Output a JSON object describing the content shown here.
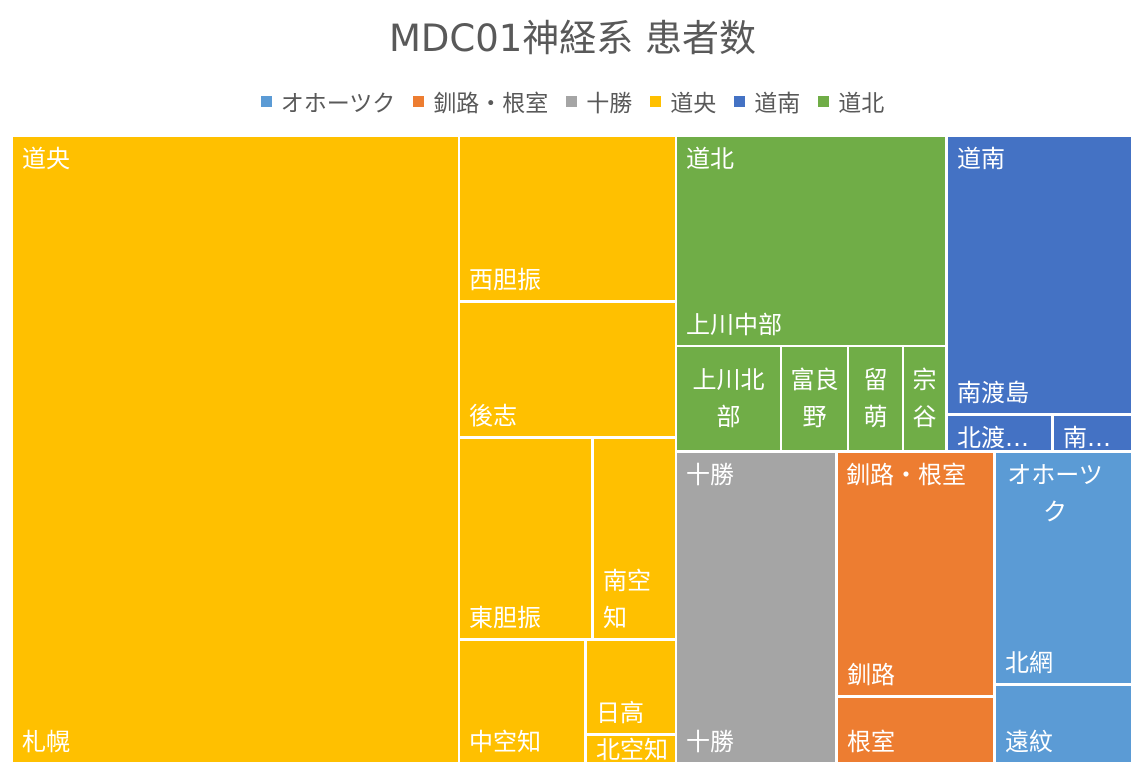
{
  "chart_data": {
    "type": "treemap",
    "title": "MDC01神経系 患者数",
    "legend_position": "top",
    "groups": [
      {
        "name": "道央",
        "color": "#FFC000",
        "children": [
          {
            "name": "札幌",
            "value": 27866
          },
          {
            "name": "西胆振",
            "value": 3455
          },
          {
            "name": "後志",
            "value": 2900
          },
          {
            "name": "東胆振",
            "value": 2528
          },
          {
            "name": "南空知",
            "value": 1205
          },
          {
            "name": "中空知",
            "value": 1655
          },
          {
            "name": "日高",
            "value": 719
          },
          {
            "name": "北空知",
            "value": 294
          }
        ]
      },
      {
        "name": "道北",
        "color": "#70AD47",
        "children": [
          {
            "name": "上川中部",
            "value": 5635
          },
          {
            "name": "上川北部",
            "value": 1007
          },
          {
            "name": "富良野",
            "value": 606
          },
          {
            "name": "留萌",
            "value": 498
          },
          {
            "name": "宗谷",
            "value": 403
          }
        ]
      },
      {
        "name": "道南",
        "color": "#4472C4",
        "children": [
          {
            "name": "南渡島",
            "value": 4570
          },
          {
            "name": "北渡島檜山",
            "value": 363
          },
          {
            "name": "南檜山",
            "value": 278
          }
        ]
      },
      {
        "name": "十勝",
        "color": "#A5A5A5",
        "children": [
          {
            "name": "十勝",
            "value": 5012
          }
        ]
      },
      {
        "name": "釧路・根室",
        "color": "#ED7D31",
        "children": [
          {
            "name": "釧路",
            "value": 2767
          },
          {
            "name": "根室",
            "value": 643
          }
        ]
      },
      {
        "name": "オホーツク",
        "color": "#5B9BD5",
        "children": [
          {
            "name": "北網",
            "value": 2275
          },
          {
            "name": "遠紋",
            "value": 646
          }
        ]
      }
    ],
    "legend": [
      {
        "name": "オホーツク",
        "color": "#5B9BD5"
      },
      {
        "name": "釧路・根室",
        "color": "#ED7D31"
      },
      {
        "name": "十勝",
        "color": "#A5A5A5"
      },
      {
        "name": "道央",
        "color": "#FFC000"
      },
      {
        "name": "道南",
        "color": "#4472C4"
      },
      {
        "name": "道北",
        "color": "#70AD47"
      }
    ]
  },
  "display_labels": {
    "北渡島檜山": "北渡…",
    "南檜山": "南…",
    "上川北部": "上川北\n部",
    "富良野": "富良\n野",
    "留萌": "留\n萌",
    "宗谷": "宗\n谷",
    "南空知": "南空\n知",
    "オホーツク": "オホーツ\nク"
  }
}
